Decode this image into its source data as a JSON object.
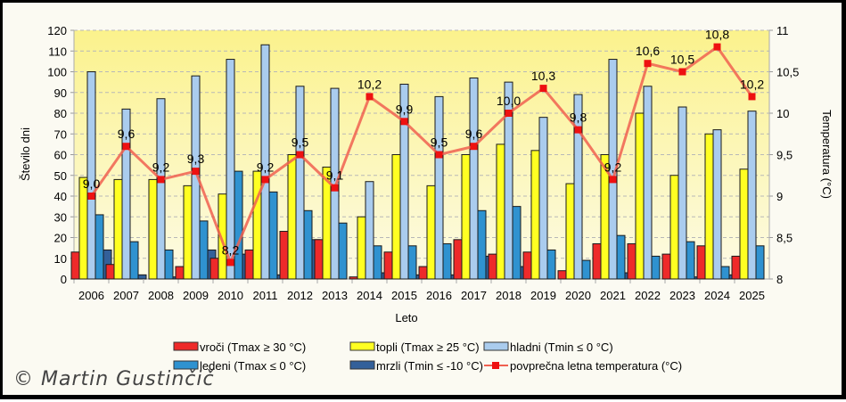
{
  "chart_data": {
    "type": "bar",
    "xlabel": "Leto",
    "ylabel": "Število dni",
    "y2label": "Temperatura (°C)",
    "ylim": [
      0,
      120
    ],
    "y_ticks": [
      0,
      10,
      20,
      30,
      40,
      50,
      60,
      70,
      80,
      90,
      100,
      110,
      120
    ],
    "y2lim": [
      8,
      11
    ],
    "y2_ticks": [
      "8",
      "8,5",
      "9",
      "9,5",
      "10",
      "10,5",
      "11"
    ],
    "y2_tick_values": [
      8,
      8.5,
      9,
      9.5,
      10,
      10.5,
      11
    ],
    "grid": true,
    "legend_position": "bottom",
    "categories": [
      "2006",
      "2007",
      "2008",
      "2009",
      "2010",
      "2011",
      "2012",
      "2013",
      "2014",
      "2015",
      "2016",
      "2017",
      "2018",
      "2019",
      "2020",
      "2021",
      "2022",
      "2023",
      "2024",
      "2025"
    ],
    "series": [
      {
        "name": "vroči (Tmax ≥ 30 °C)",
        "type": "bar",
        "color": "#ee2a2a",
        "values": [
          13,
          7,
          0,
          6,
          10,
          14,
          23,
          19,
          1,
          13,
          6,
          19,
          12,
          13,
          4,
          17,
          17,
          12,
          16,
          11
        ]
      },
      {
        "name": "topli (Tmax ≥ 25 °C)",
        "type": "bar",
        "color": "#ffff22",
        "values": [
          49,
          48,
          48,
          45,
          41,
          52,
          60,
          54,
          30,
          60,
          45,
          60,
          65,
          62,
          46,
          60,
          80,
          50,
          70,
          53
        ]
      },
      {
        "name": "hladni (Tmin ≤ 0 °C)",
        "type": "bar",
        "color": "#aaccee",
        "values": [
          100,
          82,
          87,
          98,
          106,
          113,
          93,
          92,
          47,
          94,
          88,
          97,
          95,
          78,
          89,
          106,
          93,
          83,
          72,
          81
        ]
      },
      {
        "name": "ledeni (Tmax ≤ 0 °C)",
        "type": "bar",
        "color": "#2f92d0",
        "values": [
          31,
          18,
          14,
          28,
          52,
          42,
          33,
          27,
          16,
          16,
          17,
          33,
          35,
          14,
          9,
          21,
          11,
          18,
          6,
          16
        ]
      },
      {
        "name": "mrzli (Tmin ≤ -10 °C)",
        "type": "bar",
        "color": "#33609a",
        "values": [
          14,
          2,
          1,
          14,
          12,
          2,
          19,
          0,
          3,
          2,
          2,
          11,
          6,
          0,
          0,
          3,
          0,
          1,
          2,
          0
        ]
      },
      {
        "name": "povprečna letna temperatura (°C)",
        "type": "line",
        "axis": "y2",
        "color": "#f06050",
        "marker_color": "#ee1111",
        "values": [
          9.0,
          9.6,
          9.2,
          9.3,
          8.2,
          9.2,
          9.5,
          9.1,
          10.2,
          9.9,
          9.5,
          9.6,
          10.0,
          10.3,
          9.8,
          9.2,
          10.6,
          10.5,
          10.8,
          10.2
        ],
        "labels": [
          "9,0",
          "9,6",
          "9,2",
          "9,3",
          "8,2",
          "9,2",
          "9,5",
          "9,1",
          "10,2",
          "9,9",
          "9,5",
          "9,6",
          "10,0",
          "10,3",
          "9,8",
          "9,2",
          "10,6",
          "10,5",
          "10,8",
          "10,2"
        ]
      }
    ],
    "legend": [
      [
        "vroči (Tmax ≥ 30 °C)",
        "topli (Tmax ≥ 25 °C)",
        "hladni (Tmin ≤ 0 °C)"
      ],
      [
        "ledeni (Tmax ≤ 0 °C)",
        "mrzli (Tmin ≤ -10 °C)",
        "povprečna letna temperatura (°C)"
      ]
    ]
  },
  "credit": "© Martin Gustinčič"
}
